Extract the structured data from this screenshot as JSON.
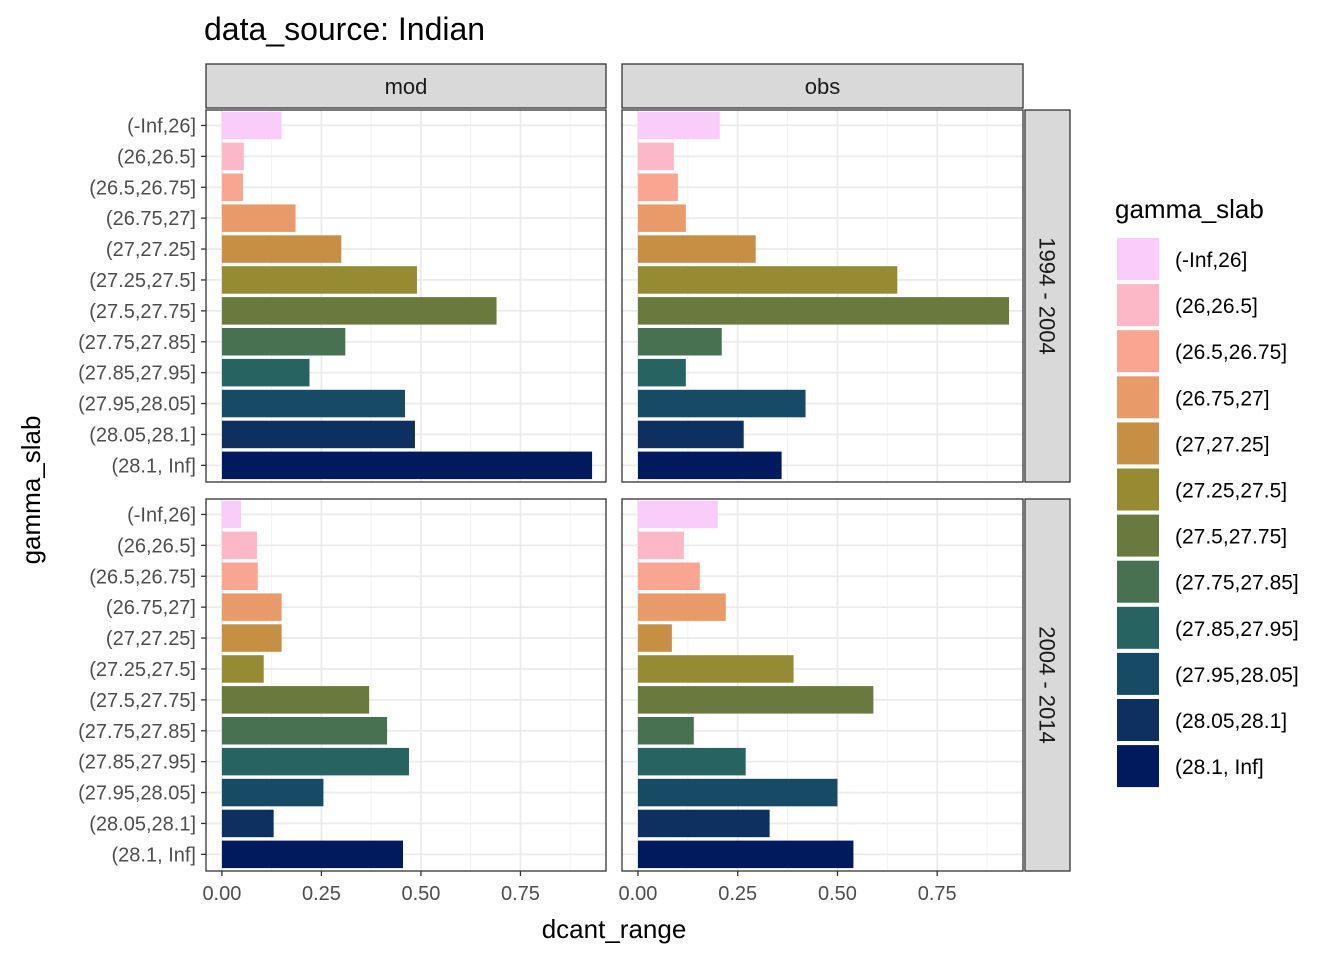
{
  "chart_data": {
    "type": "bar",
    "orientation": "horizontal",
    "title": "data_source: Indian",
    "xlabel": "dcant_range",
    "ylabel": "gamma_slab",
    "xlim": [
      -0.04,
      0.965
    ],
    "x_ticks": [
      "0.00",
      "0.25",
      "0.50",
      "0.75"
    ],
    "x_tick_values": [
      0,
      0.25,
      0.5,
      0.75
    ],
    "grid": true,
    "facet_cols": [
      "mod",
      "obs"
    ],
    "facet_rows": [
      "1994 - 2004",
      "2004 - 2014"
    ],
    "categories": [
      "(-Inf,26]",
      "(26,26.5]",
      "(26.5,26.75]",
      "(26.75,27]",
      "(27,27.25]",
      "(27.25,27.5]",
      "(27.5,27.75]",
      "(27.75,27.85]",
      "(27.85,27.95]",
      "(27.95,28.05]",
      "(28.05,28.1]",
      "(28.1, Inf]"
    ],
    "colors": [
      "#F9CCF9",
      "#FDB8C8",
      "#F9A591",
      "#E99A69",
      "#C68F43",
      "#968A33",
      "#6A7A3E",
      "#477150",
      "#276360",
      "#174A65",
      "#0D3061",
      "#001A5E"
    ],
    "legend": {
      "title": "gamma_slab",
      "position": "right"
    },
    "panels": [
      {
        "col": "mod",
        "row": "1994 - 2004",
        "values": [
          0.15,
          0.055,
          0.053,
          0.185,
          0.3,
          0.49,
          0.69,
          0.31,
          0.22,
          0.46,
          0.485,
          0.93
        ]
      },
      {
        "col": "obs",
        "row": "1994 - 2004",
        "values": [
          0.205,
          0.09,
          0.1,
          0.12,
          0.295,
          0.65,
          0.93,
          0.21,
          0.12,
          0.42,
          0.265,
          0.36
        ]
      },
      {
        "col": "mod",
        "row": "2004 - 2014",
        "values": [
          0.048,
          0.088,
          0.09,
          0.15,
          0.15,
          0.105,
          0.37,
          0.415,
          0.47,
          0.255,
          0.13,
          0.455
        ]
      },
      {
        "col": "obs",
        "row": "2004 - 2014",
        "values": [
          0.2,
          0.115,
          0.155,
          0.22,
          0.085,
          0.39,
          0.59,
          0.14,
          0.27,
          0.5,
          0.33,
          0.54
        ]
      }
    ]
  }
}
